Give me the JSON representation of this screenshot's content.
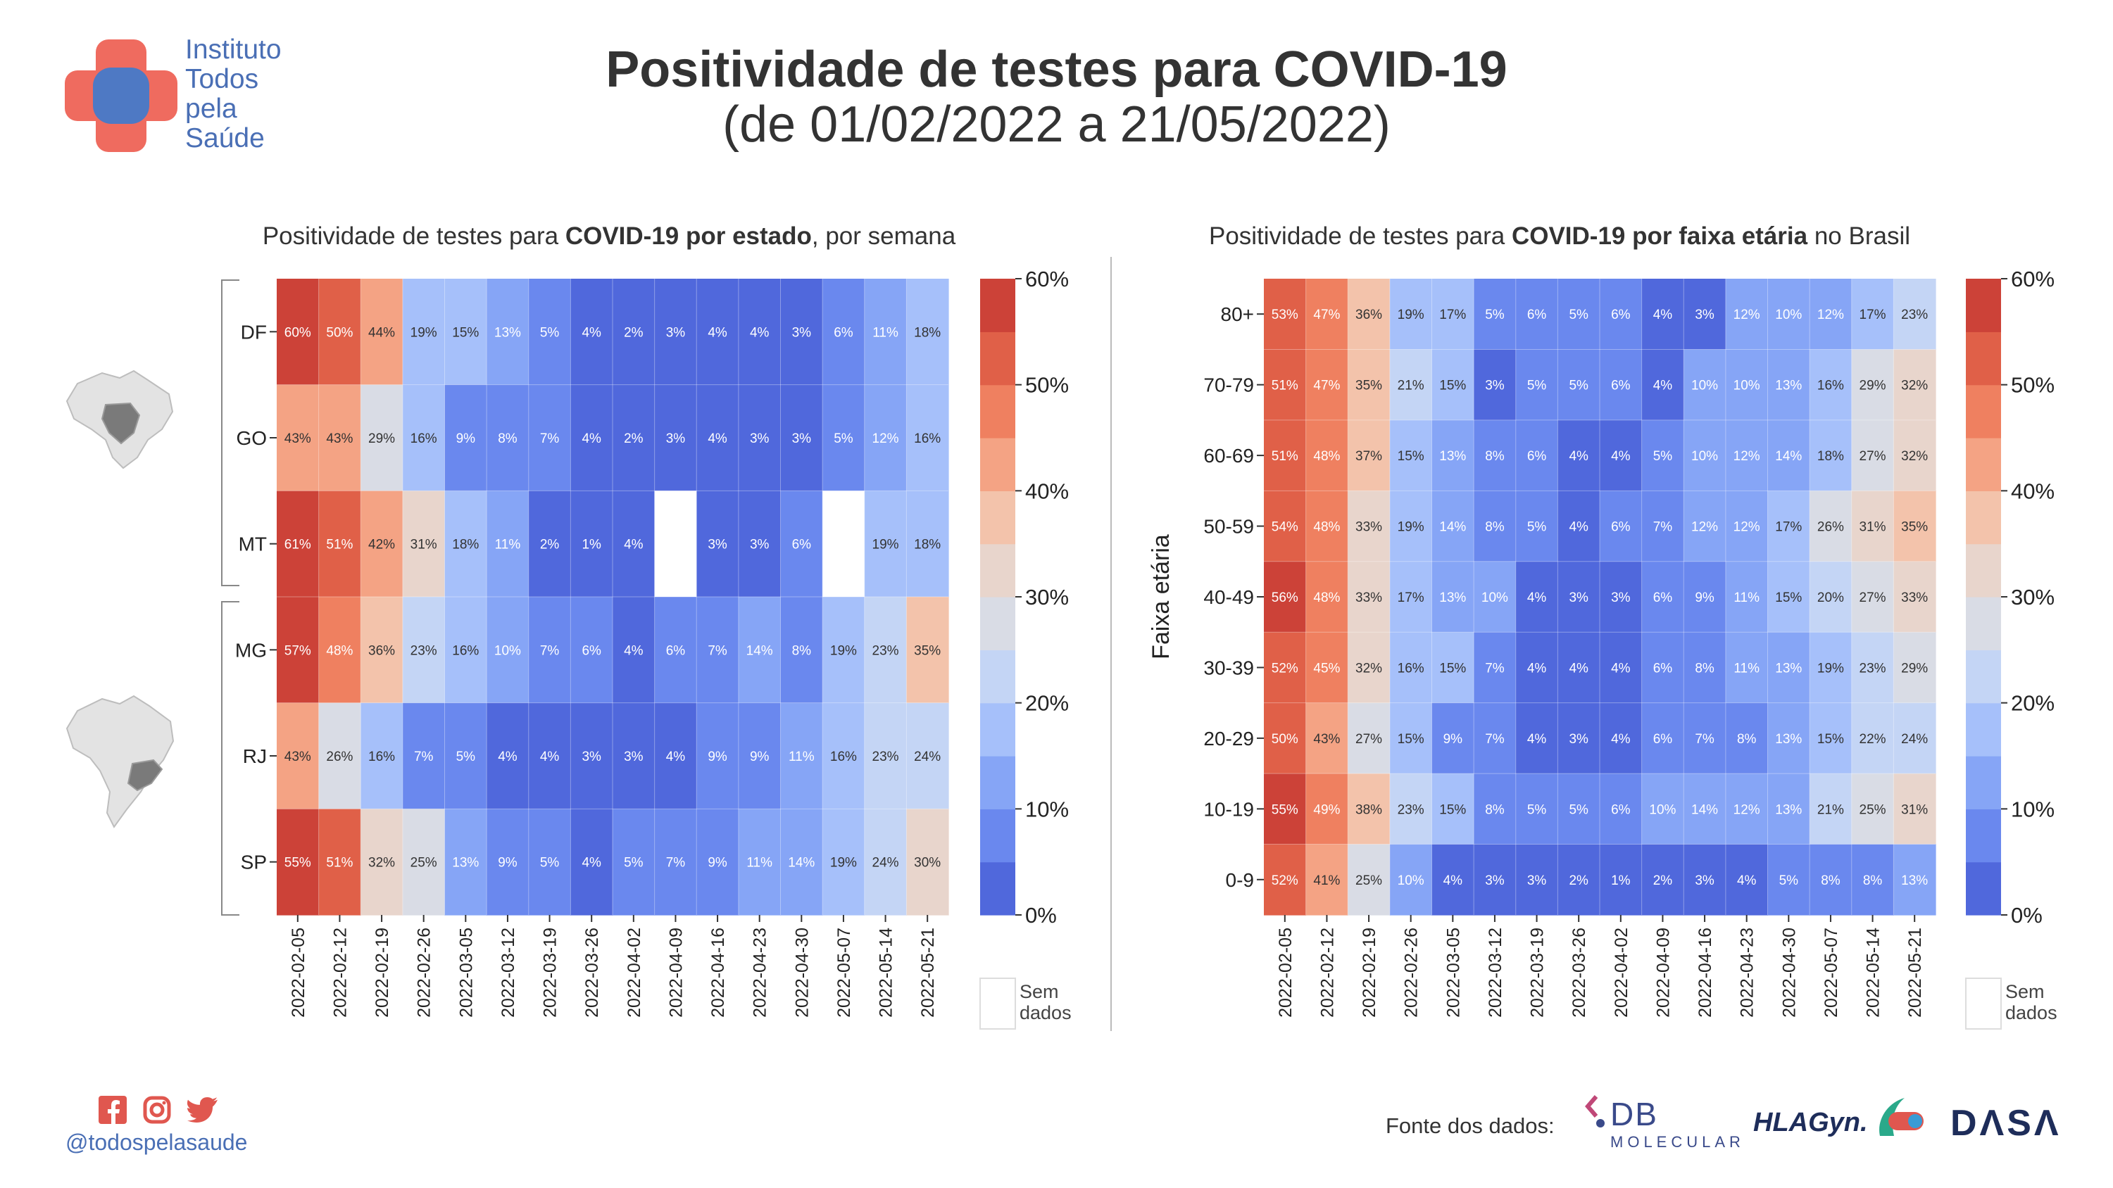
{
  "header": {
    "title": "Positividade de testes para COVID-19",
    "subtitle": "(de 01/02/2022 a 21/05/2022)",
    "logo_lines": [
      "Instituto",
      "Todos",
      "pela",
      "Saúde"
    ]
  },
  "footer": {
    "handle": "@todospelasaude",
    "source_label": "Fonte dos dados:",
    "brands": {
      "db_main": "DB",
      "db_sub": "MOLECULAR",
      "hla": "HLAGyn.",
      "dasa": "DΛSΛ"
    },
    "social_icons": [
      "facebook-icon",
      "instagram-icon",
      "twitter-icon"
    ]
  },
  "colorbar": {
    "ticks": [
      "60%",
      "50%",
      "40%",
      "30%",
      "20%",
      "10%",
      "0%"
    ],
    "no_data_label_1": "Sem",
    "no_data_label_2": "dados",
    "colors_low_to_high": [
      "#5068dc",
      "#6a88ee",
      "#86a5f6",
      "#a6c0fa",
      "#c4d5f5",
      "#d9dce5",
      "#e8d5cc",
      "#f3c3ab",
      "#f4a384",
      "#ef8060",
      "#e06048",
      "#cc4238"
    ]
  },
  "chart_data": [
    {
      "type": "heatmap",
      "title_prefix": "Positividade de testes para ",
      "title_bold": "COVID-19 por estado",
      "title_suffix": ", por semana",
      "xlabel": "",
      "ylabel": "",
      "x": [
        "2022-02-05",
        "2022-02-12",
        "2022-02-19",
        "2022-02-26",
        "2022-03-05",
        "2022-03-12",
        "2022-03-19",
        "2022-03-26",
        "2022-04-02",
        "2022-04-09",
        "2022-04-16",
        "2022-04-23",
        "2022-04-30",
        "2022-05-07",
        "2022-05-14",
        "2022-05-21"
      ],
      "y": [
        "DF",
        "GO",
        "MT",
        "MG",
        "RJ",
        "SP"
      ],
      "values": [
        [
          60,
          50,
          44,
          19,
          15,
          13,
          5,
          4,
          2,
          3,
          4,
          4,
          3,
          6,
          11,
          18
        ],
        [
          43,
          43,
          29,
          16,
          9,
          8,
          7,
          4,
          2,
          3,
          4,
          3,
          3,
          5,
          12,
          16
        ],
        [
          61,
          51,
          42,
          31,
          18,
          11,
          2,
          1,
          4,
          null,
          3,
          3,
          6,
          null,
          19,
          18
        ],
        [
          57,
          48,
          36,
          23,
          16,
          10,
          7,
          6,
          4,
          6,
          7,
          14,
          8,
          19,
          23,
          35
        ],
        [
          43,
          26,
          16,
          7,
          5,
          4,
          4,
          3,
          3,
          4,
          9,
          9,
          11,
          16,
          23,
          24
        ],
        [
          55,
          51,
          32,
          25,
          13,
          9,
          5,
          4,
          5,
          7,
          9,
          11,
          14,
          19,
          24,
          30
        ]
      ],
      "groups": [
        {
          "rows": [
            "DF",
            "GO",
            "MT"
          ],
          "region": "Centro-Oeste"
        },
        {
          "rows": [
            "MG",
            "RJ",
            "SP"
          ],
          "region": "Sudeste"
        }
      ],
      "zlim": [
        0,
        60
      ]
    },
    {
      "type": "heatmap",
      "title_prefix": "Positividade de testes para ",
      "title_bold": "COVID-19 por faixa etária",
      "title_suffix": " no Brasil",
      "xlabel": "",
      "ylabel": "Faixa etária",
      "x": [
        "2022-02-05",
        "2022-02-12",
        "2022-02-19",
        "2022-02-26",
        "2022-03-05",
        "2022-03-12",
        "2022-03-19",
        "2022-03-26",
        "2022-04-02",
        "2022-04-09",
        "2022-04-16",
        "2022-04-23",
        "2022-04-30",
        "2022-05-07",
        "2022-05-14",
        "2022-05-21"
      ],
      "y": [
        "80+",
        "70-79",
        "60-69",
        "50-59",
        "40-49",
        "30-39",
        "20-29",
        "10-19",
        "0-9"
      ],
      "values": [
        [
          53,
          47,
          36,
          19,
          17,
          5,
          6,
          5,
          6,
          4,
          3,
          12,
          10,
          12,
          17,
          23
        ],
        [
          51,
          47,
          35,
          21,
          15,
          3,
          5,
          5,
          6,
          4,
          10,
          10,
          13,
          16,
          29,
          32
        ],
        [
          51,
          48,
          37,
          15,
          13,
          8,
          6,
          4,
          4,
          5,
          10,
          12,
          14,
          18,
          27,
          32
        ],
        [
          54,
          48,
          33,
          19,
          14,
          8,
          5,
          4,
          6,
          7,
          12,
          12,
          17,
          26,
          31,
          35
        ],
        [
          56,
          48,
          33,
          17,
          13,
          10,
          4,
          3,
          3,
          6,
          9,
          11,
          15,
          20,
          27,
          33
        ],
        [
          52,
          45,
          32,
          16,
          15,
          7,
          4,
          4,
          4,
          6,
          8,
          11,
          13,
          19,
          23,
          29
        ],
        [
          50,
          43,
          27,
          15,
          9,
          7,
          4,
          3,
          4,
          6,
          7,
          8,
          13,
          15,
          22,
          24
        ],
        [
          55,
          49,
          38,
          23,
          15,
          8,
          5,
          5,
          6,
          10,
          14,
          12,
          13,
          21,
          25,
          31
        ],
        [
          52,
          41,
          25,
          10,
          4,
          3,
          3,
          2,
          1,
          2,
          3,
          4,
          5,
          8,
          8,
          13
        ]
      ],
      "zlim": [
        0,
        60
      ]
    }
  ]
}
